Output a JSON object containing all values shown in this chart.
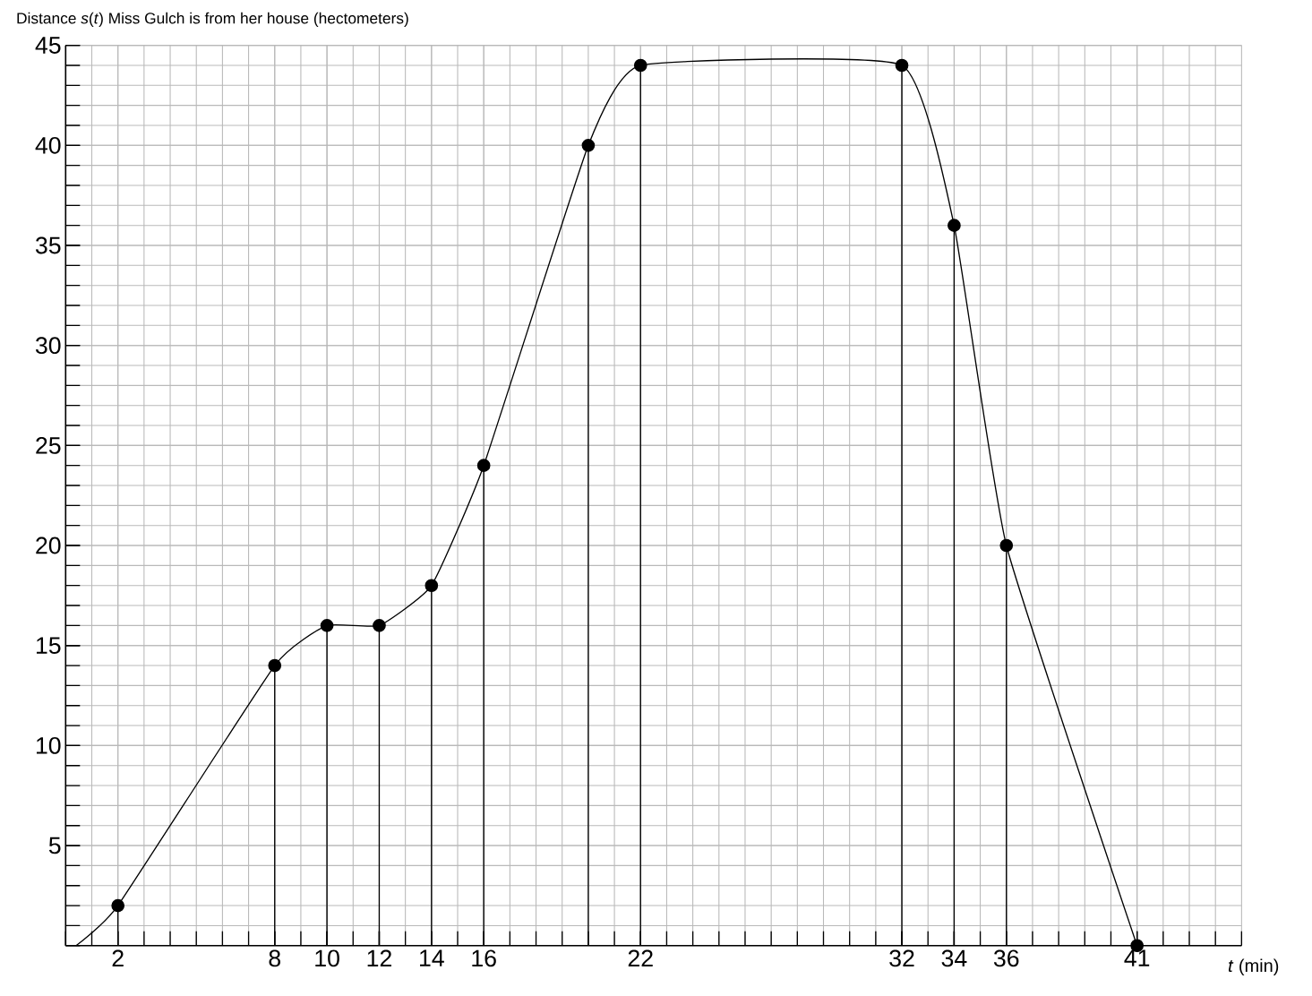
{
  "chart_data": {
    "type": "line",
    "title": "Distance *s*(*t*) Miss Gulch is from her house (hectometers)",
    "xlabel": "*t* (min)",
    "series": [
      {
        "color": "#000000",
        "x": [
          0.4,
          2,
          8,
          10,
          12,
          14,
          16,
          20,
          22,
          32,
          34,
          36,
          41
        ],
        "values": [
          0,
          2,
          14,
          16,
          16,
          18,
          24,
          40,
          44,
          44,
          36,
          20,
          0
        ]
      },
      {
        "type": "lollipop",
        "color": "#000000",
        "marker": "circle",
        "x": [
          2,
          8,
          10,
          12,
          14,
          16,
          20,
          22,
          32,
          34,
          36,
          41
        ],
        "values": [
          2,
          14,
          16,
          16,
          18,
          24,
          40,
          44,
          44,
          36,
          20,
          0
        ]
      }
    ],
    "xlim": [
      0,
      45
    ],
    "ylim": [
      0,
      45
    ],
    "xticks": [
      2,
      8,
      10,
      12,
      14,
      16,
      22,
      32,
      34,
      36,
      41
    ],
    "yticks": [
      5,
      10,
      15,
      20,
      25,
      30,
      35,
      40,
      45
    ],
    "grid": true
  }
}
